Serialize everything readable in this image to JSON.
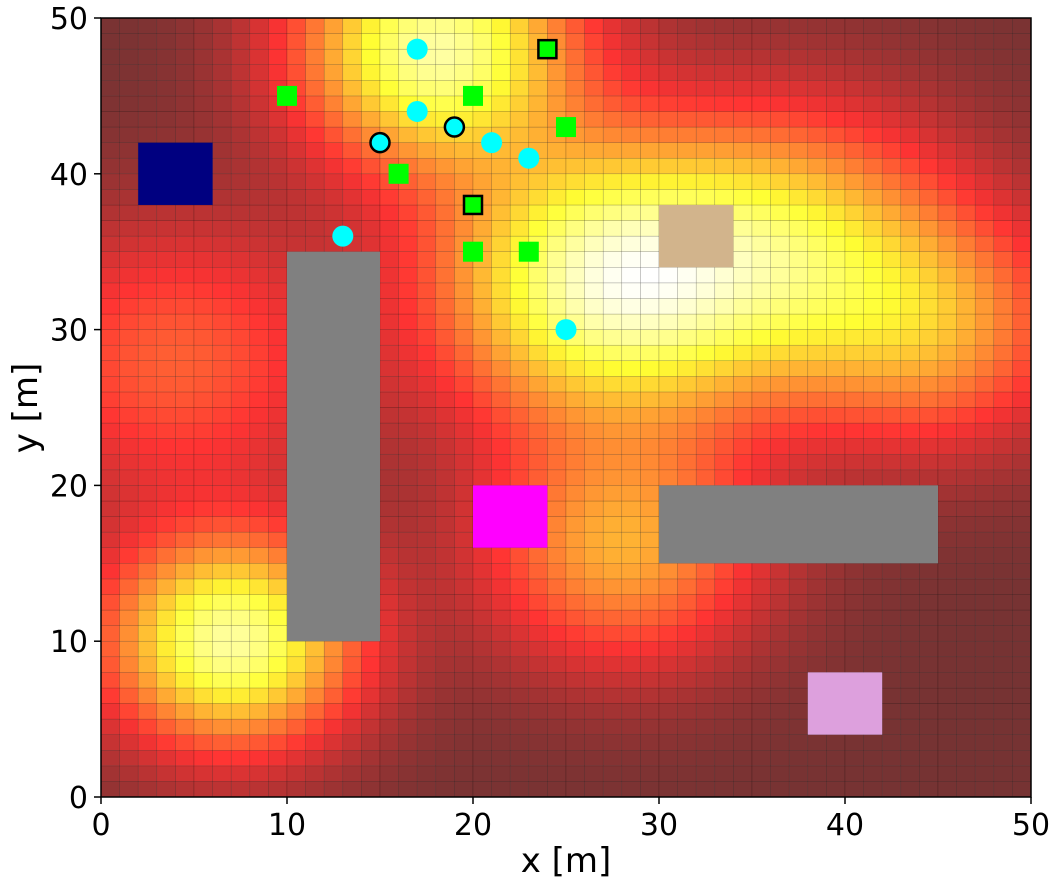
{
  "chart_data": {
    "type": "heatmap",
    "title": "",
    "xlabel": "x [m]",
    "ylabel": "y [m]",
    "xlim": [
      0,
      50
    ],
    "ylim": [
      0,
      50
    ],
    "xticks": [
      0,
      10,
      20,
      30,
      40,
      50
    ],
    "yticks": [
      0,
      10,
      20,
      30,
      40,
      50
    ],
    "grid": {
      "cell_size": 1,
      "nx": 50,
      "ny": 50
    },
    "colormap": "hot",
    "field_peaks": [
      {
        "x": 18,
        "y": 48,
        "sigma": 5.0,
        "amp": 1.0
      },
      {
        "x": 27,
        "y": 33,
        "sigma": 6.0,
        "amp": 1.0
      },
      {
        "x": 7,
        "y": 10,
        "sigma": 4.5,
        "amp": 1.0
      },
      {
        "x": 37,
        "y": 35,
        "sigma": 6.0,
        "amp": 0.65
      },
      {
        "x": 28,
        "y": 16,
        "sigma": 5.0,
        "amp": 0.55
      },
      {
        "x": 45,
        "y": 30,
        "sigma": 5.0,
        "amp": 0.45
      },
      {
        "x": 4,
        "y": 28,
        "sigma": 6.0,
        "amp": 0.35
      }
    ],
    "obstacles": [
      {
        "x0": 10,
        "y0": 10,
        "x1": 15,
        "y1": 35,
        "color": "#808080"
      },
      {
        "x0": 30,
        "y0": 15,
        "x1": 45,
        "y1": 20,
        "color": "#808080"
      }
    ],
    "regions": [
      {
        "x0": 2,
        "y0": 38,
        "x1": 6,
        "y1": 42,
        "color": "#000080"
      },
      {
        "x0": 30,
        "y0": 34,
        "x1": 34,
        "y1": 38,
        "color": "#d2b48c"
      },
      {
        "x0": 20,
        "y0": 16,
        "x1": 24,
        "y1": 20,
        "color": "#ff00ff"
      },
      {
        "x0": 38,
        "y0": 4,
        "x1": 42,
        "y1": 8,
        "color": "#dda0dd"
      }
    ],
    "circle_markers": {
      "color": "#00ffff",
      "points": [
        {
          "x": 17,
          "y": 48,
          "outlined": false
        },
        {
          "x": 17,
          "y": 44,
          "outlined": false
        },
        {
          "x": 15,
          "y": 42,
          "outlined": true
        },
        {
          "x": 19,
          "y": 43,
          "outlined": true
        },
        {
          "x": 21,
          "y": 42,
          "outlined": false
        },
        {
          "x": 23,
          "y": 41,
          "outlined": false
        },
        {
          "x": 13,
          "y": 36,
          "outlined": false
        },
        {
          "x": 25,
          "y": 30,
          "outlined": false
        }
      ]
    },
    "square_markers": {
      "color": "#00ff00",
      "points": [
        {
          "x": 24,
          "y": 48,
          "outlined": true
        },
        {
          "x": 10,
          "y": 45,
          "outlined": false
        },
        {
          "x": 20,
          "y": 45,
          "outlined": false
        },
        {
          "x": 25,
          "y": 43,
          "outlined": false
        },
        {
          "x": 16,
          "y": 40,
          "outlined": false
        },
        {
          "x": 20,
          "y": 38,
          "outlined": true
        },
        {
          "x": 20,
          "y": 35,
          "outlined": false
        },
        {
          "x": 23,
          "y": 35,
          "outlined": false
        }
      ]
    }
  }
}
